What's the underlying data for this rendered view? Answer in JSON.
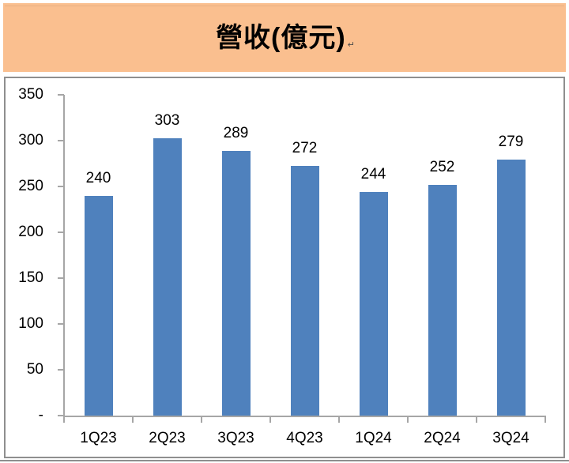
{
  "title": {
    "paragraph_mark": "↵"
  },
  "chart_data": {
    "type": "bar",
    "title": "營收(億元)",
    "categories": [
      "1Q23",
      "2Q23",
      "3Q23",
      "4Q23",
      "1Q24",
      "2Q24",
      "3Q24"
    ],
    "values": [
      240,
      303,
      289,
      272,
      244,
      252,
      279
    ],
    "xlabel": "",
    "ylabel": "",
    "ylim": [
      0,
      350
    ],
    "y_tick_interval": 50,
    "y_tick_labels": [
      "350",
      "300",
      "250",
      "200",
      "150",
      "100",
      "50",
      "-"
    ],
    "grid": false,
    "legend": "none",
    "value_labels_shown": true,
    "colors": {
      "bar": "#4F81BD",
      "axis": "#A6A6A6",
      "text": "#000000",
      "title_band_bg": "#FABF8F",
      "chart_border": "#8F8F8F"
    }
  }
}
